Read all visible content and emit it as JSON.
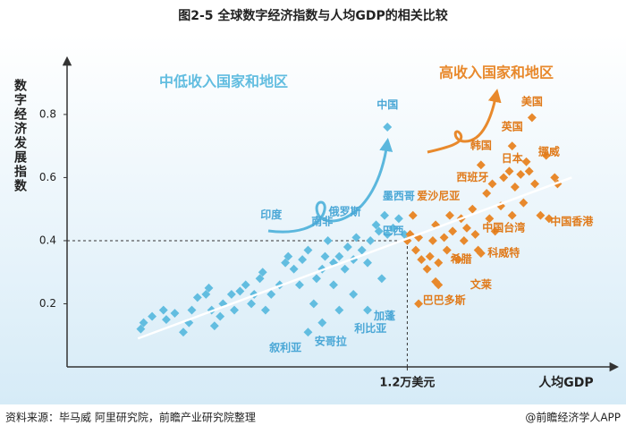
{
  "chart_data": {
    "type": "scatter",
    "title": "图2-5 全球数字经济指数与人均GDP的相关比较",
    "y_label": "数字经济发展指数",
    "x_label": "人均GDP",
    "source": "资料来源：毕马威 阿里研究院，前瞻产业研究院整理",
    "credit": "@前瞻经济学人APP",
    "xlim": [
      0,
      1.94
    ],
    "ylim": [
      0,
      0.95
    ],
    "xticks": [
      {
        "value": 1.2,
        "label": "1.2万美元"
      }
    ],
    "yticks": [
      0.2,
      0.4,
      0.6,
      0.8
    ],
    "reference": {
      "x": 1.2,
      "y": 0.4
    },
    "trend": {
      "x": [
        0.25,
        1.78
      ],
      "y": [
        0.09,
        0.6
      ]
    },
    "series": [
      {
        "name": "中低收入国家和地区",
        "color": "#62bde0",
        "x": [
          0.27,
          0.26,
          0.3,
          0.34,
          0.35,
          0.38,
          0.41,
          0.43,
          0.44,
          0.46,
          0.49,
          0.5,
          0.51,
          0.52,
          0.54,
          0.55,
          0.58,
          0.59,
          0.61,
          0.63,
          0.65,
          0.66,
          0.68,
          0.69,
          0.7,
          0.72,
          0.75,
          0.77,
          0.78,
          0.8,
          0.82,
          0.83,
          0.85,
          0.87,
          0.88,
          0.9,
          0.91,
          0.92,
          0.94,
          0.94,
          0.96,
          0.98,
          0.99,
          1.01,
          1.02,
          1.04,
          1.06,
          1.07,
          1.09,
          1.1,
          1.12,
          1.13,
          1.15,
          1.17,
          1.19,
          1.11,
          1.01,
          0.9,
          0.85,
          0.96,
          1.06,
          1.13
        ],
        "values": [
          0.14,
          0.12,
          0.16,
          0.18,
          0.15,
          0.17,
          0.11,
          0.14,
          0.18,
          0.22,
          0.23,
          0.25,
          0.18,
          0.13,
          0.16,
          0.2,
          0.23,
          0.18,
          0.24,
          0.26,
          0.2,
          0.23,
          0.28,
          0.3,
          0.18,
          0.23,
          0.26,
          0.33,
          0.35,
          0.31,
          0.26,
          0.34,
          0.37,
          0.2,
          0.28,
          0.31,
          0.35,
          0.4,
          0.33,
          0.26,
          0.35,
          0.31,
          0.38,
          0.34,
          0.41,
          0.37,
          0.33,
          0.4,
          0.45,
          0.43,
          0.48,
          0.42,
          0.44,
          0.47,
          0.42,
          0.28,
          0.23,
          0.14,
          0.11,
          0.18,
          0.18,
          0.76
        ]
      },
      {
        "name": "高收入国家和地区",
        "color": "#e8892c",
        "x": [
          1.2,
          1.21,
          1.23,
          1.24,
          1.25,
          1.27,
          1.28,
          1.29,
          1.3,
          1.31,
          1.31,
          1.33,
          1.34,
          1.35,
          1.36,
          1.38,
          1.39,
          1.4,
          1.41,
          1.43,
          1.44,
          1.45,
          1.46,
          1.48,
          1.49,
          1.5,
          1.51,
          1.53,
          1.54,
          1.56,
          1.57,
          1.57,
          1.58,
          1.6,
          1.61,
          1.62,
          1.63,
          1.64,
          1.65,
          1.67,
          1.69,
          1.7,
          1.72,
          1.73,
          1.24,
          1.3,
          1.46,
          1.22
        ],
        "values": [
          0.4,
          0.42,
          0.37,
          0.41,
          0.34,
          0.31,
          0.35,
          0.4,
          0.45,
          0.33,
          0.26,
          0.41,
          0.37,
          0.48,
          0.43,
          0.34,
          0.47,
          0.4,
          0.44,
          0.5,
          0.42,
          0.37,
          0.64,
          0.55,
          0.47,
          0.58,
          0.43,
          0.51,
          0.6,
          0.62,
          0.48,
          0.7,
          0.57,
          0.61,
          0.52,
          0.65,
          0.62,
          0.79,
          0.58,
          0.48,
          0.67,
          0.47,
          0.6,
          0.58,
          0.2,
          0.27,
          0.36,
          0.48
        ]
      }
    ],
    "annotations": [
      {
        "text": "中国",
        "x": 1.13,
        "y": 0.83,
        "color": "#4aa7d6"
      },
      {
        "text": "印度",
        "x": 0.72,
        "y": 0.48,
        "color": "#4aa7d6"
      },
      {
        "text": "俄罗斯",
        "x": 0.98,
        "y": 0.49,
        "color": "#4aa7d6"
      },
      {
        "text": "墨西哥",
        "x": 1.17,
        "y": 0.54,
        "color": "#4aa7d6"
      },
      {
        "text": "南非",
        "x": 0.9,
        "y": 0.46,
        "color": "#4aa7d6"
      },
      {
        "text": "巴西",
        "x": 1.15,
        "y": 0.43,
        "color": "#4aa7d6"
      },
      {
        "text": "加蓬",
        "x": 1.12,
        "y": 0.16,
        "color": "#4aa7d6"
      },
      {
        "text": "利比亚",
        "x": 1.07,
        "y": 0.12,
        "color": "#4aa7d6"
      },
      {
        "text": "安哥拉",
        "x": 0.93,
        "y": 0.08,
        "color": "#4aa7d6"
      },
      {
        "text": "叙利亚",
        "x": 0.77,
        "y": 0.06,
        "color": "#4aa7d6"
      },
      {
        "text": "美国",
        "x": 1.64,
        "y": 0.84,
        "color": "#e07a1a"
      },
      {
        "text": "英国",
        "x": 1.57,
        "y": 0.76,
        "color": "#e07a1a"
      },
      {
        "text": "韩国",
        "x": 1.46,
        "y": 0.7,
        "color": "#e07a1a"
      },
      {
        "text": "日本",
        "x": 1.57,
        "y": 0.66,
        "color": "#e07a1a"
      },
      {
        "text": "挪威",
        "x": 1.7,
        "y": 0.68,
        "color": "#e07a1a"
      },
      {
        "text": "西班牙",
        "x": 1.43,
        "y": 0.6,
        "color": "#e07a1a"
      },
      {
        "text": "爱沙尼亚",
        "x": 1.31,
        "y": 0.54,
        "color": "#e07a1a"
      },
      {
        "text": "中国台湾",
        "x": 1.54,
        "y": 0.44,
        "color": "#e07a1a"
      },
      {
        "text": "中国香港",
        "x": 1.78,
        "y": 0.46,
        "color": "#e07a1a"
      },
      {
        "text": "科威特",
        "x": 1.54,
        "y": 0.36,
        "color": "#e07a1a"
      },
      {
        "text": "希腊",
        "x": 1.39,
        "y": 0.34,
        "color": "#e07a1a"
      },
      {
        "text": "文莱",
        "x": 1.46,
        "y": 0.26,
        "color": "#e07a1a"
      },
      {
        "text": "巴巴多斯",
        "x": 1.33,
        "y": 0.21,
        "color": "#e07a1a"
      }
    ]
  }
}
